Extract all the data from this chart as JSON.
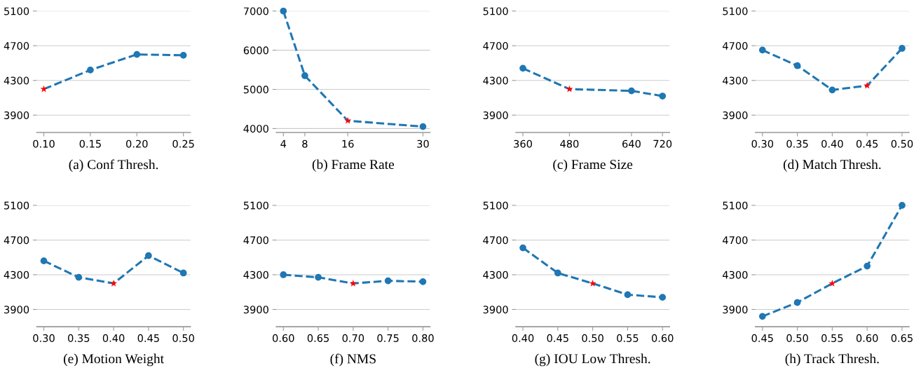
{
  "chart_data": [
    {
      "type": "line",
      "xlabel": "(a) Conf Thresh.",
      "x": [
        0.1,
        0.15,
        0.2,
        0.25
      ],
      "marker": "circle",
      "line_style": "dashed",
      "grid": "y",
      "xlim": [
        0.0925,
        0.2575
      ],
      "ylim": [
        3700,
        5100
      ],
      "xticks": [
        {
          "value": 0.1,
          "label": "0.10"
        },
        {
          "value": 0.15,
          "label": "0.15"
        },
        {
          "value": 0.2,
          "label": "0.20"
        },
        {
          "value": 0.25,
          "label": "0.25"
        }
      ],
      "yticks": [
        3900,
        4300,
        4700,
        5100
      ],
      "series": [
        {
          "color": "#1f77b4",
          "values": [
            4200,
            4420,
            4600,
            4590
          ]
        },
        {
          "type": "scatter",
          "marker": "star",
          "color": "#ff0000",
          "x": [
            0.1
          ],
          "values": [
            4200
          ]
        }
      ]
    },
    {
      "type": "line",
      "xlabel": "(b) Frame Rate",
      "x": [
        4,
        8,
        16,
        30
      ],
      "marker": "circle",
      "line_style": "dashed",
      "grid": "y",
      "xlim": [
        2.7,
        31.3
      ],
      "ylim": [
        3900,
        7000
      ],
      "xticks": [
        4,
        8,
        16,
        30
      ],
      "yticks": [
        4000,
        5000,
        6000,
        7000
      ],
      "series": [
        {
          "color": "#1f77b4",
          "values": [
            7000,
            5350,
            4200,
            4050
          ]
        },
        {
          "type": "scatter",
          "marker": "star",
          "color": "#ff0000",
          "x": [
            16
          ],
          "values": [
            4200
          ]
        }
      ]
    },
    {
      "type": "line",
      "xlabel": "(c) Frame Size",
      "x": [
        360,
        480,
        640,
        720
      ],
      "marker": "circle",
      "line_style": "dashed",
      "grid": "y",
      "xlim": [
        342,
        738
      ],
      "ylim": [
        3700,
        5100
      ],
      "xticks": [
        360,
        480,
        640,
        720
      ],
      "yticks": [
        3900,
        4300,
        4700,
        5100
      ],
      "series": [
        {
          "color": "#1f77b4",
          "values": [
            4440,
            4200,
            4180,
            4120
          ]
        },
        {
          "type": "scatter",
          "marker": "star",
          "color": "#ff0000",
          "x": [
            480
          ],
          "values": [
            4200
          ]
        }
      ]
    },
    {
      "type": "line",
      "xlabel": "(d) Match Thresh.",
      "x": [
        0.3,
        0.35,
        0.4,
        0.45,
        0.5
      ],
      "marker": "circle",
      "line_style": "dashed",
      "grid": "y",
      "xlim": [
        0.29,
        0.51
      ],
      "ylim": [
        3700,
        5100
      ],
      "xticks": [
        {
          "value": 0.3,
          "label": "0.30"
        },
        {
          "value": 0.35,
          "label": "0.35"
        },
        {
          "value": 0.4,
          "label": "0.40"
        },
        {
          "value": 0.45,
          "label": "0.45"
        },
        {
          "value": 0.5,
          "label": "0.50"
        }
      ],
      "yticks": [
        3900,
        4300,
        4700,
        5100
      ],
      "series": [
        {
          "color": "#1f77b4",
          "values": [
            4650,
            4470,
            4190,
            4240,
            4670
          ]
        },
        {
          "type": "scatter",
          "marker": "star",
          "color": "#ff0000",
          "x": [
            0.45
          ],
          "values": [
            4240
          ]
        }
      ]
    },
    {
      "type": "line",
      "xlabel": "(e) Motion Weight",
      "x": [
        0.3,
        0.35,
        0.4,
        0.45,
        0.5
      ],
      "marker": "circle",
      "line_style": "dashed",
      "grid": "y",
      "xlim": [
        0.29,
        0.51
      ],
      "ylim": [
        3700,
        5100
      ],
      "xticks": [
        {
          "value": 0.3,
          "label": "0.30"
        },
        {
          "value": 0.35,
          "label": "0.35"
        },
        {
          "value": 0.4,
          "label": "0.40"
        },
        {
          "value": 0.45,
          "label": "0.45"
        },
        {
          "value": 0.5,
          "label": "0.50"
        }
      ],
      "yticks": [
        3900,
        4300,
        4700,
        5100
      ],
      "series": [
        {
          "color": "#1f77b4",
          "values": [
            4460,
            4270,
            4200,
            4520,
            4320
          ]
        },
        {
          "type": "scatter",
          "marker": "star",
          "color": "#ff0000",
          "x": [
            0.4
          ],
          "values": [
            4200
          ]
        }
      ]
    },
    {
      "type": "line",
      "xlabel": "(f) NMS",
      "x": [
        0.6,
        0.65,
        0.7,
        0.75,
        0.8
      ],
      "marker": "circle",
      "line_style": "dashed",
      "grid": "y",
      "xlim": [
        0.59,
        0.81
      ],
      "ylim": [
        3700,
        5100
      ],
      "xticks": [
        {
          "value": 0.6,
          "label": "0.60"
        },
        {
          "value": 0.65,
          "label": "0.65"
        },
        {
          "value": 0.7,
          "label": "0.70"
        },
        {
          "value": 0.75,
          "label": "0.75"
        },
        {
          "value": 0.8,
          "label": "0.80"
        }
      ],
      "yticks": [
        3900,
        4300,
        4700,
        5100
      ],
      "series": [
        {
          "color": "#1f77b4",
          "values": [
            4300,
            4270,
            4200,
            4230,
            4220
          ]
        },
        {
          "type": "scatter",
          "marker": "star",
          "color": "#ff0000",
          "x": [
            0.7
          ],
          "values": [
            4200
          ]
        }
      ]
    },
    {
      "type": "line",
      "xlabel": "(g) IOU Low Thresh.",
      "x": [
        0.4,
        0.45,
        0.5,
        0.55,
        0.6
      ],
      "marker": "circle",
      "line_style": "dashed",
      "grid": "y",
      "xlim": [
        0.39,
        0.61
      ],
      "ylim": [
        3700,
        5100
      ],
      "xticks": [
        {
          "value": 0.4,
          "label": "0.40"
        },
        {
          "value": 0.45,
          "label": "0.45"
        },
        {
          "value": 0.5,
          "label": "0.50"
        },
        {
          "value": 0.55,
          "label": "0.55"
        },
        {
          "value": 0.6,
          "label": "0.60"
        }
      ],
      "yticks": [
        3900,
        4300,
        4700,
        5100
      ],
      "series": [
        {
          "color": "#1f77b4",
          "values": [
            4610,
            4320,
            4200,
            4070,
            4040
          ]
        },
        {
          "type": "scatter",
          "marker": "star",
          "color": "#ff0000",
          "x": [
            0.5
          ],
          "values": [
            4200
          ]
        }
      ]
    },
    {
      "type": "line",
      "xlabel": "(h) Track Thresh.",
      "x": [
        0.45,
        0.5,
        0.55,
        0.6,
        0.65
      ],
      "marker": "circle",
      "line_style": "dashed",
      "grid": "y",
      "xlim": [
        0.44,
        0.66
      ],
      "ylim": [
        3700,
        5100
      ],
      "xticks": [
        {
          "value": 0.45,
          "label": "0.45"
        },
        {
          "value": 0.5,
          "label": "0.50"
        },
        {
          "value": 0.55,
          "label": "0.55"
        },
        {
          "value": 0.6,
          "label": "0.60"
        },
        {
          "value": 0.65,
          "label": "0.65"
        }
      ],
      "yticks": [
        3900,
        4300,
        4700,
        5100
      ],
      "series": [
        {
          "color": "#1f77b4",
          "values": [
            3820,
            3980,
            4200,
            4400,
            5100
          ]
        },
        {
          "type": "scatter",
          "marker": "star",
          "color": "#ff0000",
          "x": [
            0.55
          ],
          "values": [
            4200
          ]
        }
      ]
    }
  ]
}
